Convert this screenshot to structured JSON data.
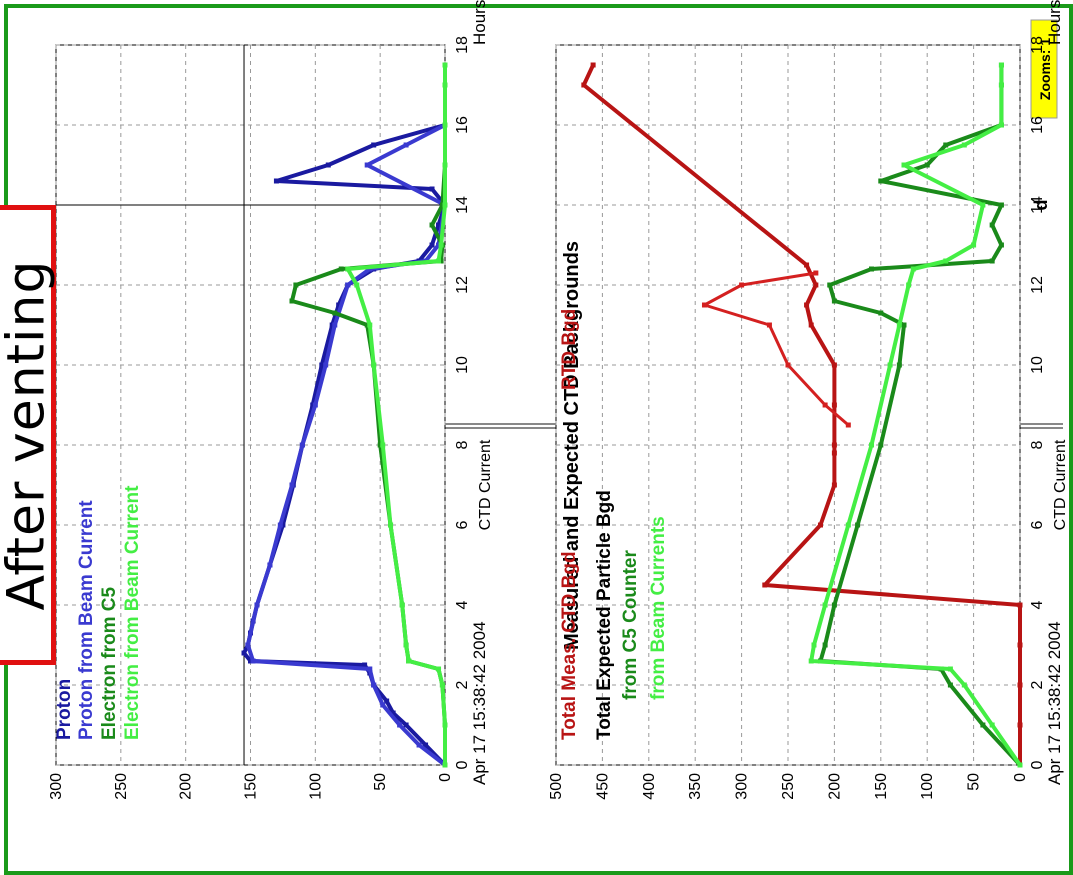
{
  "annotation": {
    "text": "After venting"
  },
  "chart_data": [
    {
      "type": "line",
      "panel": "top",
      "title": "",
      "xlabel": "Hours",
      "ylabel": "CTD Current",
      "date_label": "Apr 17 15:38:42 2004",
      "xlim": [
        0,
        18
      ],
      "ylim": [
        0,
        300
      ],
      "x_ticks": [
        0,
        2,
        4,
        6,
        8,
        10,
        12,
        14,
        16,
        18
      ],
      "y_ticks": [
        0,
        50,
        100,
        150,
        200,
        250,
        300
      ],
      "grid": true,
      "legend_position": "top-left",
      "badge": "Zooms: 1",
      "partial_label": "d",
      "cursor": {
        "x": 14.0,
        "y": 155
      },
      "series": [
        {
          "name": "Proton",
          "color": "#1a1aa0",
          "width": 2,
          "x": [
            0,
            0.5,
            1,
            1.3,
            1.6,
            2.0,
            2.3,
            2.5,
            2.6,
            2.8,
            3.0,
            3.3,
            3.6,
            4.0,
            5,
            6,
            7,
            8,
            9,
            10,
            11,
            11.5,
            12,
            12.4,
            12.6,
            13.0,
            13.5,
            14.0,
            14.4,
            14.6,
            15.0,
            15.5,
            16.0,
            17.0,
            17.5
          ],
          "y": [
            0,
            15,
            30,
            40,
            45,
            55,
            58,
            62,
            150,
            155,
            152,
            150,
            148,
            145,
            135,
            125,
            117,
            110,
            102,
            95,
            87,
            82,
            75,
            55,
            20,
            10,
            5,
            0,
            10,
            130,
            90,
            55,
            0,
            0,
            0
          ]
        },
        {
          "name": "Proton from Beam Current",
          "color": "#3a3ad0",
          "width": 2,
          "x": [
            0,
            0.5,
            1,
            1.5,
            2.0,
            2.4,
            2.6,
            3.0,
            4,
            5,
            6,
            7,
            8,
            9,
            10,
            11,
            12,
            12.4,
            12.6,
            13,
            14,
            15,
            15.5,
            16,
            17,
            17.5
          ],
          "y": [
            0,
            20,
            35,
            48,
            55,
            58,
            148,
            152,
            145,
            135,
            127,
            118,
            110,
            100,
            92,
            85,
            75,
            58,
            15,
            5,
            0,
            60,
            30,
            0,
            0,
            0
          ]
        },
        {
          "name": "Electron from C5",
          "color": "#1a8a1a",
          "width": 2,
          "x": [
            0,
            1,
            2,
            2.4,
            2.6,
            3,
            4,
            6,
            8,
            10,
            11,
            11.3,
            11.6,
            12,
            12.4,
            12.6,
            13,
            13.5,
            14,
            15,
            16,
            17,
            17.5
          ],
          "y": [
            0,
            0,
            2,
            5,
            28,
            30,
            33,
            42,
            50,
            55,
            60,
            85,
            118,
            115,
            80,
            3,
            2,
            10,
            2,
            0,
            0,
            0,
            0
          ]
        },
        {
          "name": "Electron from Beam Current",
          "color": "#44ee44",
          "width": 2,
          "x": [
            0,
            1,
            2,
            2.4,
            2.6,
            3,
            4,
            6,
            8,
            10,
            11,
            12,
            12.4,
            12.6,
            13,
            14,
            15,
            16,
            17,
            17.5
          ],
          "y": [
            0,
            0,
            2,
            5,
            28,
            30,
            33,
            42,
            48,
            55,
            58,
            68,
            75,
            5,
            3,
            0,
            0,
            0,
            0,
            0
          ]
        }
      ],
      "legend_labels": [
        {
          "text": "Proton",
          "color": "#1a1aa0"
        },
        {
          "text": "Proton from Beam Current",
          "color": "#3a3ad0"
        },
        {
          "text": "Electron from C5",
          "color": "#1a8a1a"
        },
        {
          "text": "Electron from Beam Current",
          "color": "#44ee44"
        }
      ]
    },
    {
      "type": "line",
      "panel": "bottom",
      "title": "Measured and Expected CTD Backgrounds",
      "xlabel": "Hours",
      "ylabel": "CTD Current",
      "date_label": "Apr 17 15:38:42 2004",
      "xlim": [
        0,
        18
      ],
      "ylim": [
        0,
        500
      ],
      "x_ticks": [
        0,
        2,
        4,
        6,
        8,
        10,
        12,
        14,
        16,
        18
      ],
      "y_ticks": [
        0,
        50,
        100,
        150,
        200,
        250,
        300,
        350,
        400,
        450,
        500
      ],
      "grid": true,
      "legend_position": "top-left",
      "series": [
        {
          "name": "Total Meas. CTD Bgd",
          "color": "#b81414",
          "width": 2,
          "x": [
            0,
            1,
            2,
            3,
            4,
            4.5,
            6,
            7,
            7.8,
            8,
            9,
            10,
            11,
            11.5,
            12,
            12.5,
            17.0,
            17.5
          ],
          "y": [
            0,
            0,
            0,
            0,
            0,
            275,
            215,
            200,
            200,
            200,
            200,
            200,
            225,
            230,
            220,
            230,
            470,
            460
          ]
        },
        {
          "name": "RTD Bgd",
          "color": "#d42020",
          "width": 1,
          "x": [
            8.5,
            9,
            10,
            11,
            11.5,
            12,
            12.3
          ],
          "y": [
            185,
            210,
            250,
            270,
            340,
            300,
            220
          ]
        },
        {
          "name": "Total Expected Particle Bgd",
          "color": "#000000",
          "width": 1,
          "x": [],
          "y": []
        },
        {
          "name": "from C5 Counter",
          "color": "#1a8a1a",
          "width": 2,
          "x": [
            0,
            1,
            2,
            2.4,
            2.6,
            3.0,
            4,
            6,
            8,
            10,
            11,
            11.3,
            11.6,
            12,
            12.4,
            12.6,
            13,
            13.5,
            14,
            14.6,
            15,
            15.5,
            16,
            17,
            17.5
          ],
          "y": [
            0,
            40,
            75,
            85,
            215,
            210,
            200,
            175,
            150,
            130,
            125,
            150,
            200,
            205,
            160,
            30,
            20,
            30,
            20,
            150,
            100,
            80,
            20,
            20,
            20
          ]
        },
        {
          "name": "from Beam Currents",
          "color": "#44ee44",
          "width": 2,
          "x": [
            0,
            1,
            2,
            2.4,
            2.6,
            3.0,
            4,
            6,
            8,
            10,
            11,
            12,
            12.4,
            12.6,
            13,
            14,
            15,
            15.5,
            16,
            17,
            17.5
          ],
          "y": [
            0,
            30,
            60,
            75,
            225,
            222,
            210,
            185,
            160,
            140,
            130,
            120,
            115,
            80,
            50,
            40,
            125,
            60,
            20,
            20,
            20
          ]
        }
      ],
      "legend_labels": [
        {
          "text": "Total Meas. CTD Bgd",
          "color": "#b81414"
        },
        {
          "text": "RTD Bgd",
          "color": "#b81414"
        },
        {
          "text": "Total Expected Particle Bgd",
          "color": "#000000"
        },
        {
          "text": "from C5 Counter",
          "color": "#1a8a1a"
        },
        {
          "text": "from Beam Currents",
          "color": "#44ee44"
        }
      ]
    }
  ]
}
